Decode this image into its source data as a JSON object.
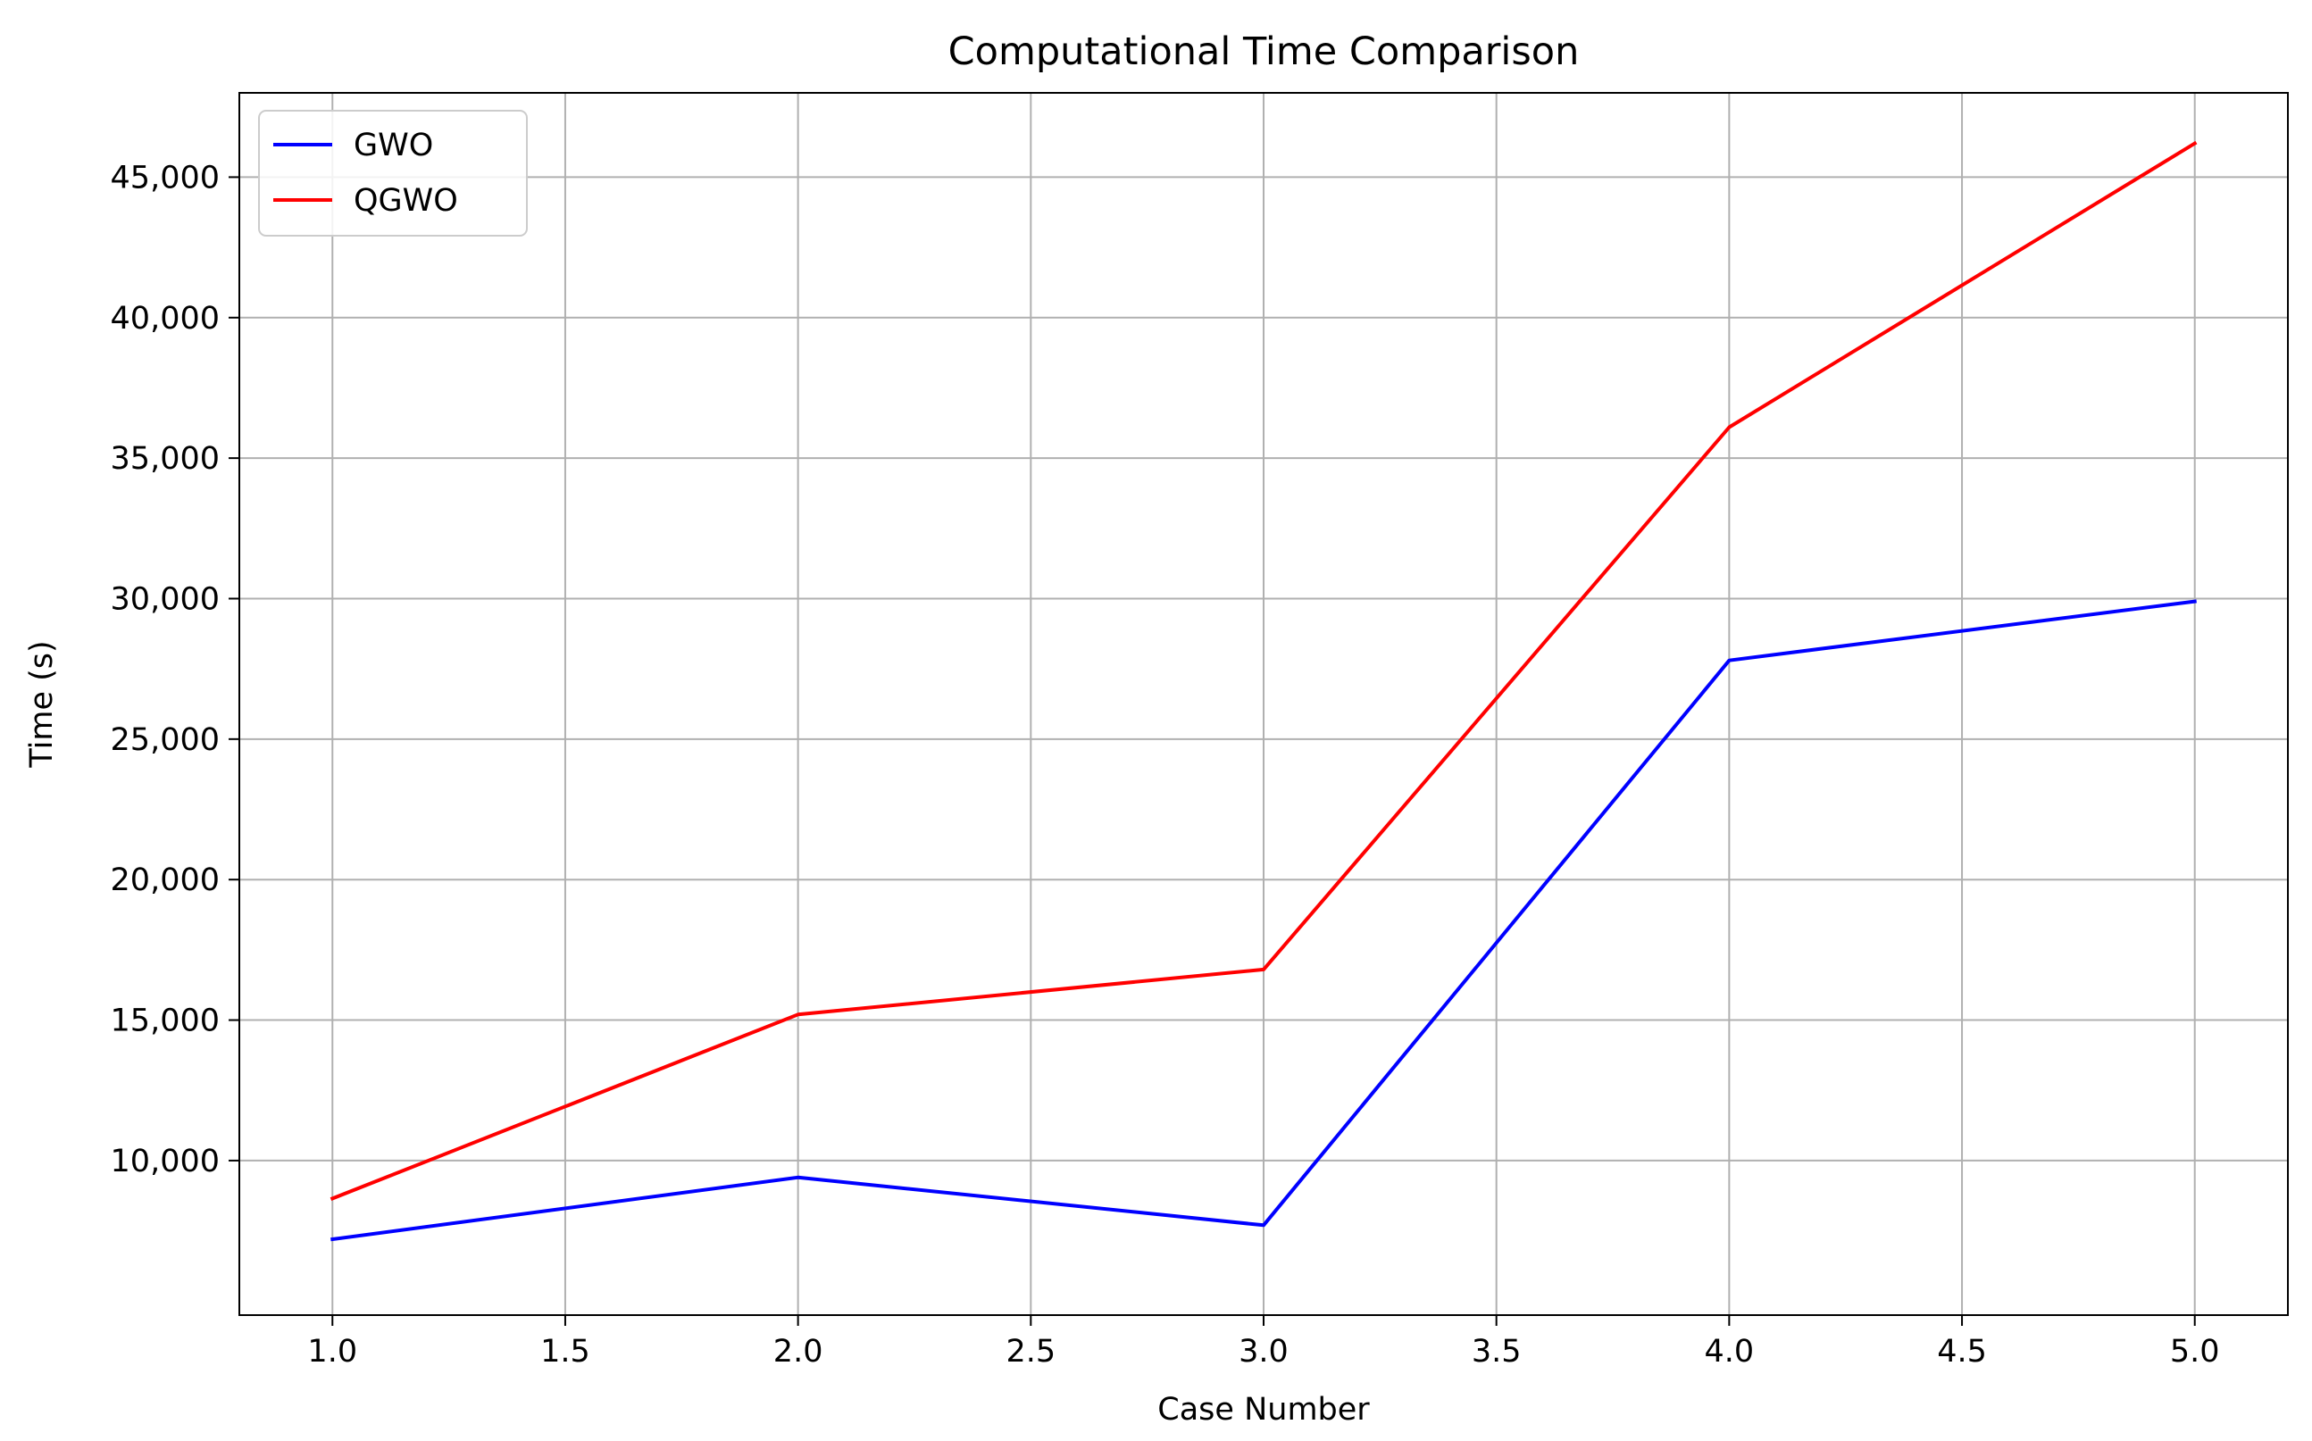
{
  "chart_data": {
    "type": "line",
    "title": "Computational Time Comparison",
    "xlabel": "Case Number",
    "ylabel": "Time (s)",
    "x": [
      1,
      2,
      3,
      4,
      5
    ],
    "series": [
      {
        "name": "GWO",
        "color": "#0000ff",
        "values": [
          7200,
          9400,
          7700,
          27800,
          29900
        ]
      },
      {
        "name": "QGWO",
        "color": "#ff0000",
        "values": [
          8650,
          15200,
          16800,
          36100,
          46200
        ]
      }
    ],
    "xlim": [
      0.8,
      5.2
    ],
    "ylim": [
      4500,
      48000
    ],
    "xticks": [
      1.0,
      1.5,
      2.0,
      2.5,
      3.0,
      3.5,
      4.0,
      4.5,
      5.0
    ],
    "xtick_labels": [
      "1.0",
      "1.5",
      "2.0",
      "2.5",
      "3.0",
      "3.5",
      "4.0",
      "4.5",
      "5.0"
    ],
    "yticks": [
      10000,
      15000,
      20000,
      25000,
      30000,
      35000,
      40000,
      45000
    ],
    "ytick_labels": [
      "10,000",
      "15,000",
      "20,000",
      "25,000",
      "30,000",
      "35,000",
      "40,000",
      "45,000"
    ],
    "grid": true,
    "legend_position": "upper left"
  }
}
